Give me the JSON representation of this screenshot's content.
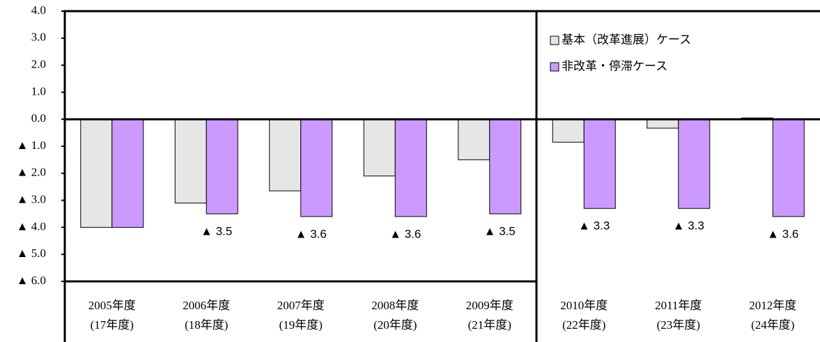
{
  "chart_data": {
    "type": "bar",
    "categories": [
      [
        "2005年度",
        "(17年度)"
      ],
      [
        "2006年度",
        "(18年度)"
      ],
      [
        "2007年度",
        "(19年度)"
      ],
      [
        "2008年度",
        "(20年度)"
      ],
      [
        "2009年度",
        "(21年度)"
      ],
      [
        "2010年度",
        "(22年度)"
      ],
      [
        "2011年度",
        "(23年度)"
      ],
      [
        "2012年度",
        "(24年度)"
      ]
    ],
    "series": [
      {
        "name": "基本（改革進展）ケース",
        "color": "#e6e6e6",
        "values": [
          -4.0,
          -3.1,
          -2.65,
          -2.1,
          -1.5,
          -0.85,
          -0.33,
          0.05
        ]
      },
      {
        "name": "非改革・停滞ケース",
        "color": "#cc99ff",
        "values": [
          -4.0,
          -3.5,
          -3.6,
          -3.6,
          -3.5,
          -3.3,
          -3.3,
          -3.6
        ],
        "value_labels": [
          null,
          "▲ 3.5",
          "▲ 3.6",
          "▲ 3.6",
          "▲ 3.5",
          "▲ 3.3",
          "▲ 3.3",
          "▲ 3.6"
        ]
      }
    ],
    "ylim": [
      -6,
      4
    ],
    "yticks": [
      {
        "value": 4,
        "label": "4.0"
      },
      {
        "value": 3,
        "label": "3.0"
      },
      {
        "value": 2,
        "label": "2.0"
      },
      {
        "value": 1,
        "label": "1.0"
      },
      {
        "value": 0,
        "label": "0.0"
      },
      {
        "value": -1,
        "label": "▲ 1.0"
      },
      {
        "value": -2,
        "label": "▲ 2.0"
      },
      {
        "value": -3,
        "label": "▲ 3.0"
      },
      {
        "value": -4,
        "label": "▲ 4.0"
      },
      {
        "value": -5,
        "label": "▲ 5.0"
      },
      {
        "value": -6,
        "label": "▲ 6.0"
      }
    ],
    "legend": "top right"
  }
}
